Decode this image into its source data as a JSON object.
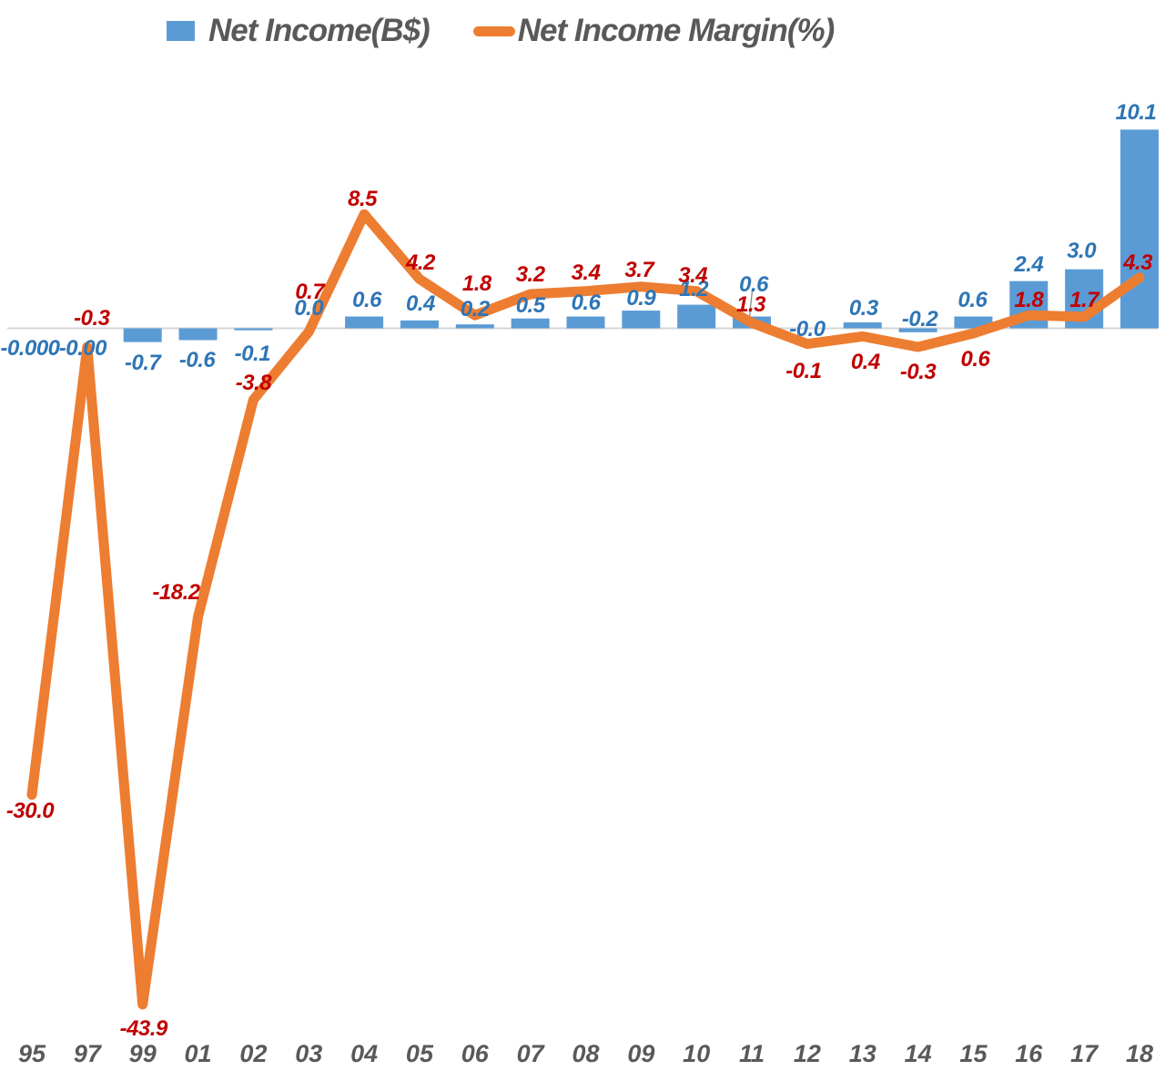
{
  "legend": {
    "items": [
      {
        "label": "Net Income(B$)",
        "marker": "square",
        "color": "#5B9BD5"
      },
      {
        "label": "Net Income Margin(%)",
        "marker": "dash",
        "color": "#ED7D31"
      }
    ],
    "text_color": "#595959"
  },
  "chart_data": {
    "type": "bar-line-combo",
    "title": "",
    "categories": [
      "95",
      "97",
      "99",
      "01",
      "02",
      "03",
      "04",
      "05",
      "06",
      "07",
      "08",
      "09",
      "10",
      "11",
      "12",
      "13",
      "14",
      "15",
      "16",
      "17",
      "18"
    ],
    "series": [
      {
        "name": "Net Income(B$)",
        "type": "bar",
        "axis": "primary",
        "color": "#5B9BD5",
        "label_color": "#2E75B6",
        "values": [
          -0.0,
          -0.0,
          -0.7,
          -0.6,
          -0.1,
          0.0,
          0.6,
          0.4,
          0.2,
          0.5,
          0.6,
          0.9,
          1.2,
          0.6,
          -0.0,
          0.3,
          -0.2,
          0.6,
          2.4,
          3.0,
          10.1
        ],
        "labels": [
          "-0.000",
          "-0.00",
          "-0.7",
          "-0.6",
          "-0.1",
          "0.0",
          "0.6",
          "0.4",
          "0.2",
          "0.5",
          "0.6",
          "0.9",
          "1.2",
          "0.6",
          "-0.0",
          "0.3",
          "-0.2",
          "0.6",
          "2.4",
          "3.0",
          "10.1"
        ]
      },
      {
        "name": "Net Income Margin(%)",
        "type": "line",
        "axis": "secondary",
        "color": "#ED7D31",
        "label_color": "#C00000",
        "values": [
          -30.0,
          -0.3,
          -43.9,
          -18.2,
          -3.8,
          0.7,
          8.5,
          4.2,
          1.8,
          3.2,
          3.4,
          3.7,
          3.4,
          1.3,
          -0.1,
          0.4,
          -0.3,
          0.6,
          1.8,
          1.7,
          4.3
        ],
        "labels": [
          "-30.0",
          "-0.3",
          "-43.9",
          "-18.2",
          "-3.8",
          "0.7",
          "8.5",
          "4.2",
          "1.8",
          "3.2",
          "3.4",
          "3.7",
          "3.4",
          "1.3",
          "-0.1",
          "0.4",
          "-0.3",
          "0.6",
          "1.8",
          "1.7",
          "4.3"
        ]
      }
    ],
    "axes": {
      "x_tick_color": "#595959",
      "zero_line": true,
      "zero_line_color": "#D6D6D6",
      "gridlines": false,
      "y_axis_visible": false
    },
    "legend_position": "top"
  }
}
